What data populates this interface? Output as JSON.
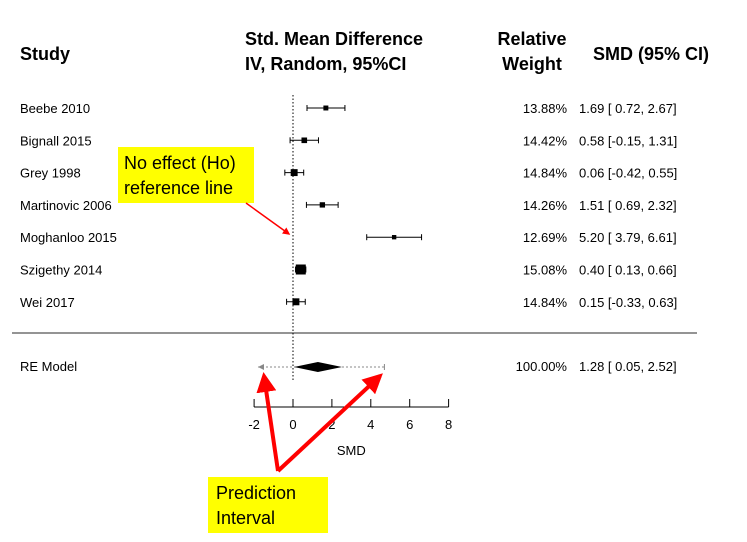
{
  "chart_data": {
    "type": "forest",
    "headers": {
      "study": "Study",
      "effect_line1": "Std. Mean Difference",
      "effect_line2": "IV, Random, 95%CI",
      "weight_line1": "Relative",
      "weight_line2": "Weight",
      "ci": "SMD (95% CI)"
    },
    "studies": [
      {
        "name": "Beebe 2010",
        "smd": 1.69,
        "lower": 0.72,
        "upper": 2.67,
        "weight": 13.88,
        "weight_label": "13.88%",
        "ci_label": "1.69 [ 0.72, 2.67]"
      },
      {
        "name": "Bignall 2015",
        "smd": 0.58,
        "lower": -0.15,
        "upper": 1.31,
        "weight": 14.42,
        "weight_label": "14.42%",
        "ci_label": "0.58 [-0.15, 1.31]"
      },
      {
        "name": "Grey 1998",
        "smd": 0.06,
        "lower": -0.42,
        "upper": 0.55,
        "weight": 14.84,
        "weight_label": "14.84%",
        "ci_label": "0.06 [-0.42, 0.55]"
      },
      {
        "name": "Martinovic 2006",
        "smd": 1.51,
        "lower": 0.69,
        "upper": 2.32,
        "weight": 14.26,
        "weight_label": "14.26%",
        "ci_label": "1.51 [ 0.69, 2.32]"
      },
      {
        "name": "Moghanloo 2015",
        "smd": 5.2,
        "lower": 3.79,
        "upper": 6.61,
        "weight": 12.69,
        "weight_label": "12.69%",
        "ci_label": "5.20 [ 3.79, 6.61]"
      },
      {
        "name": "Szigethy 2014",
        "smd": 0.4,
        "lower": 0.13,
        "upper": 0.66,
        "weight": 15.08,
        "weight_label": "15.08%",
        "ci_label": "0.40 [ 0.13, 0.66]"
      },
      {
        "name": "Wei 2017",
        "smd": 0.15,
        "lower": -0.33,
        "upper": 0.63,
        "weight": 14.84,
        "weight_label": "14.84%",
        "ci_label": "0.15 [-0.33, 0.63]"
      }
    ],
    "summary": {
      "name": "RE Model",
      "smd": 1.28,
      "lower": 0.05,
      "upper": 2.52,
      "pi_lower": -1.8,
      "pi_upper": 4.7,
      "weight_label": "100.00%",
      "ci_label": "1.28 [ 0.05, 2.52]"
    },
    "xaxis": {
      "label": "SMD",
      "ticks": [
        -2,
        0,
        2,
        4,
        6,
        8
      ],
      "tick_labels": [
        "-2",
        "0",
        "2",
        "4",
        "6",
        "8"
      ],
      "range": [
        -2,
        8
      ]
    },
    "reference_line": 0,
    "annotations": [
      {
        "id": "no-effect",
        "line1": "No effect (Ho)",
        "line2": "reference line",
        "bg": "#ffff00"
      },
      {
        "id": "prediction-interval",
        "line1": "Prediction",
        "line2": "Interval",
        "bg": "#ffff00"
      }
    ],
    "colors": {
      "arrow": "#ff0000",
      "callout": "#ffff00",
      "ink": "#000000"
    }
  }
}
